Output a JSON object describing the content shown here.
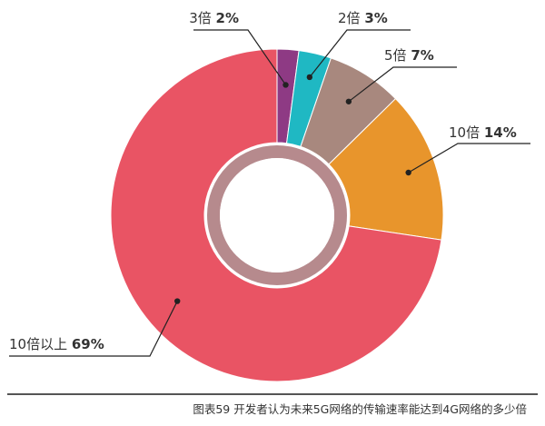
{
  "chart_data": {
    "type": "pie",
    "variant": "donut",
    "title": "",
    "slices": [
      {
        "label": "3倍",
        "value": 2,
        "pct_label": "2%",
        "color": "#8E3A84"
      },
      {
        "label": "2倍",
        "value": 3,
        "pct_label": "3%",
        "color": "#1FB8C3"
      },
      {
        "label": "5倍",
        "value": 7,
        "pct_label": "7%",
        "color": "#A8887E"
      },
      {
        "label": "10倍",
        "value": 14,
        "pct_label": "14%",
        "color": "#E8952C"
      },
      {
        "label": "10倍以上",
        "value": 69,
        "pct_label": "69%",
        "color": "#E95464"
      }
    ],
    "legend": "none",
    "labels": "outside-with-leader-lines"
  },
  "caption": "图表59 开发者认为未来5G网络的传输速率能达到4G网络的多少倍"
}
